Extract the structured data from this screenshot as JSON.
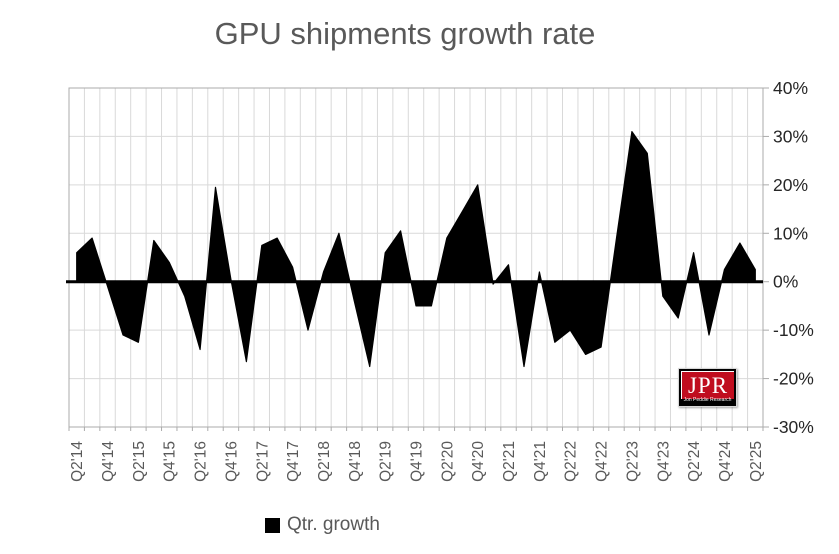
{
  "title": "GPU shipments growth rate",
  "legend": {
    "label": "Qtr. growth",
    "marker_color": "#000000"
  },
  "logo": {
    "letters": "JPR",
    "subtitle": "Jon Peddie Research",
    "bg_color": "#c00d1e",
    "band_color": "#000000",
    "text_color": "#ffffff"
  },
  "colors": {
    "background": "#ffffff",
    "title_text": "#595959",
    "legend_text": "#595959",
    "y_axis_text": "#262626",
    "x_axis_text": "#595959",
    "gridline": "#d9d9d9",
    "axis_line": "#ababab",
    "zero_line": "#000000",
    "area_fill": "#000000"
  },
  "chart_data": {
    "type": "area",
    "title": "GPU shipments growth rate",
    "series_name": "Qtr. growth",
    "xlabel": "",
    "ylabel": "",
    "ylim": [
      -30,
      40
    ],
    "y_tick_step": 10,
    "y_tick_labels": [
      "40%",
      "30%",
      "20%",
      "10%",
      "0%",
      "-10%",
      "-20%",
      "-30%"
    ],
    "grid": true,
    "legend_position": "bottom",
    "y_axis_side": "right",
    "x_label_every": 2,
    "categories": [
      "Q2'14",
      "Q3'14",
      "Q4'14",
      "Q1'15",
      "Q2'15",
      "Q3'15",
      "Q4'15",
      "Q1'16",
      "Q2'16",
      "Q3'16",
      "Q4'16",
      "Q1'17",
      "Q2'17",
      "Q3'17",
      "Q4'17",
      "Q1'18",
      "Q2'18",
      "Q3'18",
      "Q4'18",
      "Q1'19",
      "Q2'19",
      "Q3'19",
      "Q4'19",
      "Q1'20",
      "Q2'20",
      "Q3'20",
      "Q4'20",
      "Q1'21",
      "Q2'21",
      "Q3'21",
      "Q4'21",
      "Q1'22",
      "Q2'22",
      "Q3'22",
      "Q4'22",
      "Q1'23",
      "Q2'23",
      "Q3'23",
      "Q4'23",
      "Q1'24",
      "Q2'24",
      "Q3'24",
      "Q4'24",
      "Q1'25",
      "Q2'25"
    ],
    "x_tick_labels": [
      "Q2'14",
      "Q4'14",
      "Q2'15",
      "Q4'15",
      "Q2'16",
      "Q4'16",
      "Q2'17",
      "Q4'17",
      "Q2'18",
      "Q4'18",
      "Q2'19",
      "Q4'19",
      "Q2'20",
      "Q4'20",
      "Q2'21",
      "Q4'21",
      "Q2'22",
      "Q4'22",
      "Q2'23",
      "Q4'23",
      "Q2'24",
      "Q4'24",
      "Q2'25"
    ],
    "values": [
      6,
      9,
      -1,
      -11,
      -12.5,
      8.5,
      4,
      -3,
      -14,
      19.5,
      0.5,
      -16.5,
      7.5,
      9,
      3,
      -10,
      2,
      10,
      -4,
      -17.5,
      6,
      10.5,
      -5,
      -5,
      9,
      14.5,
      20,
      -0.5,
      3.5,
      -17.5,
      2,
      -12.5,
      -10,
      -15,
      -13.5,
      9,
      31,
      26.5,
      -3,
      -7.5,
      6,
      -11,
      2.5,
      8,
      2.5
    ]
  }
}
